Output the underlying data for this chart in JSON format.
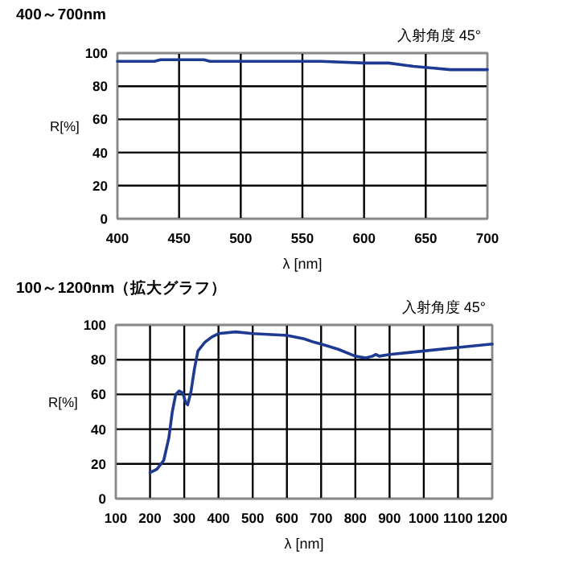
{
  "chart_data": [
    {
      "type": "line",
      "title": "400～700nm",
      "xlabel": "λ [nm]",
      "ylabel": "R[%]",
      "annotations": [
        "入射角度 45°"
      ],
      "series": [
        {
          "color": "#1f3a93",
          "x": [
            400,
            430,
            435,
            470,
            475,
            560,
            565,
            600,
            620,
            640,
            655,
            670,
            680,
            700
          ],
          "values": [
            95,
            95,
            96,
            96,
            95,
            95,
            95,
            94,
            94,
            92,
            91,
            90,
            90,
            90
          ]
        }
      ],
      "xlim": [
        400,
        700
      ],
      "xticks": [
        400,
        450,
        500,
        550,
        600,
        650,
        700
      ],
      "ylim": [
        0,
        100
      ],
      "yticks": [
        0,
        20,
        40,
        60,
        80,
        100
      ],
      "grid": true,
      "marker": "none",
      "line_style": "solid"
    },
    {
      "type": "line",
      "title": "100～1200nm（拡大グラフ）",
      "xlabel": "λ [nm]",
      "ylabel": "R[%]",
      "annotations": [
        "入射角度 45°"
      ],
      "series": [
        {
          "color": "#1f3a93",
          "x": [
            200,
            220,
            240,
            255,
            265,
            275,
            285,
            295,
            305,
            310,
            320,
            330,
            340,
            360,
            380,
            400,
            450,
            500,
            600,
            650,
            680,
            700,
            750,
            800,
            830,
            850,
            860,
            870,
            900,
            1000,
            1100,
            1200
          ],
          "values": [
            15,
            17,
            22,
            35,
            50,
            60,
            62,
            61,
            55,
            54,
            62,
            75,
            85,
            90,
            93,
            95,
            96,
            95,
            94,
            92,
            90,
            89,
            86,
            82,
            81,
            82,
            83,
            82,
            83,
            85,
            87,
            89
          ]
        }
      ],
      "xlim": [
        100,
        1200
      ],
      "xticks": [
        100,
        200,
        300,
        400,
        500,
        600,
        700,
        800,
        900,
        1000,
        1100,
        1200
      ],
      "ylim": [
        0,
        100
      ],
      "yticks": [
        0,
        20,
        40,
        60,
        80,
        100
      ],
      "grid": true,
      "marker": "none",
      "line_style": "solid"
    }
  ]
}
